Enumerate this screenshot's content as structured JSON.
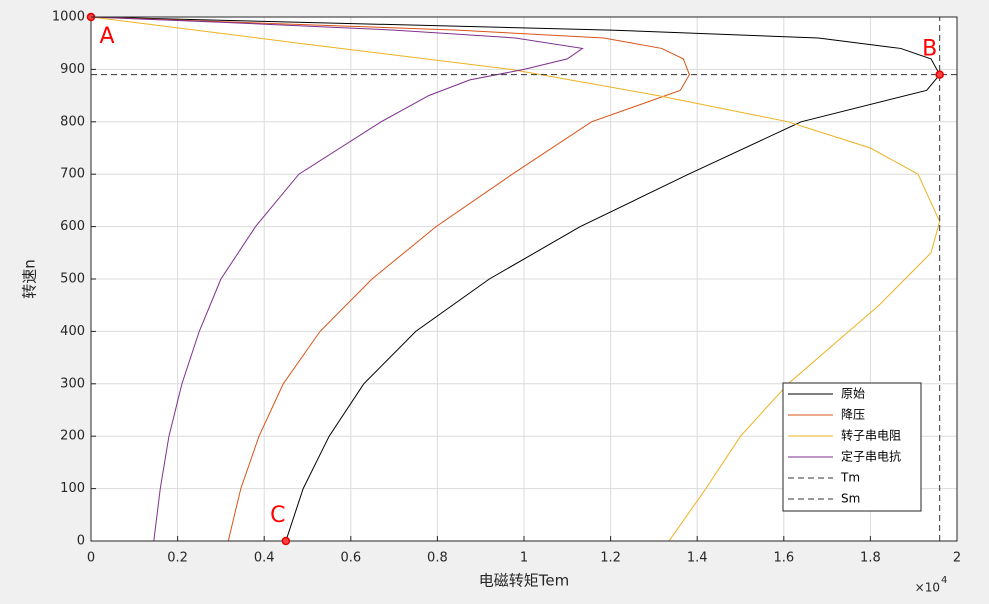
{
  "chart_data": {
    "type": "line",
    "xlabel": "电磁转矩Tem",
    "ylabel": "转速n",
    "x_scale_label": {
      "base": "×10",
      "exponent": "4"
    },
    "xlim": [
      0,
      20000
    ],
    "ylim": [
      0,
      1000
    ],
    "xticks": [
      0,
      {
        "value": 2000,
        "label": "0.2"
      },
      {
        "value": 4000,
        "label": "0.4"
      },
      {
        "value": 6000,
        "label": "0.6"
      },
      {
        "value": 8000,
        "label": "0.8"
      },
      {
        "value": 10000,
        "label": "1"
      },
      {
        "value": 12000,
        "label": "1.2"
      },
      {
        "value": 14000,
        "label": "1.4"
      },
      {
        "value": 16000,
        "label": "1.6"
      },
      {
        "value": 18000,
        "label": "1.8"
      },
      {
        "value": 20000,
        "label": "2"
      }
    ],
    "yticks": [
      0,
      100,
      200,
      300,
      400,
      500,
      600,
      700,
      800,
      900,
      1000
    ],
    "grid": true,
    "legend_position": "lower right",
    "series": [
      {
        "name": "原始",
        "color": "#000000",
        "style": "solid",
        "x": [
          0,
          12000,
          16800,
          18700,
          19400,
          19600,
          19300,
          16400,
          13800,
          11300,
          9200,
          7500,
          6300,
          5500,
          4900,
          4500
        ],
        "y": [
          1000,
          975,
          960,
          940,
          920,
          890,
          860,
          800,
          700,
          600,
          500,
          400,
          300,
          200,
          100,
          0
        ]
      },
      {
        "name": "降压",
        "color": "#d95319",
        "style": "solid",
        "x": [
          0,
          8460,
          11840,
          13180,
          13680,
          13820,
          13610,
          11560,
          9730,
          7970,
          6490,
          5290,
          4440,
          3880,
          3460,
          3170
        ],
        "y": [
          1000,
          975,
          960,
          940,
          920,
          890,
          860,
          800,
          700,
          600,
          500,
          400,
          300,
          200,
          100,
          0
        ]
      },
      {
        "name": "转子串电阻",
        "color": "#edb120",
        "style": "solid",
        "x": [
          0,
          4800,
          9700,
          13100,
          16100,
          18000,
          19100,
          19600,
          19400,
          18800,
          18200,
          17500,
          16100,
          15000,
          14200,
          13350
        ],
        "y": [
          1000,
          950,
          900,
          850,
          800,
          750,
          700,
          610,
          550,
          500,
          450,
          400,
          300,
          200,
          100,
          0
        ]
      },
      {
        "name": "定子串电抗",
        "color": "#7e2f8e",
        "style": "solid",
        "x": [
          0,
          3000,
          7000,
          9800,
          11350,
          11000,
          10000,
          8750,
          7800,
          6700,
          4800,
          3800,
          3000,
          2500,
          2100,
          1800,
          1600,
          1450
        ],
        "y": [
          1000,
          990,
          975,
          960,
          940,
          920,
          900,
          880,
          850,
          800,
          700,
          600,
          500,
          400,
          300,
          200,
          100,
          0
        ]
      },
      {
        "name": "Tm",
        "color": "#333333",
        "style": "dashed",
        "x": [
          19600,
          19600
        ],
        "y": [
          0,
          1000
        ]
      },
      {
        "name": "Sm",
        "color": "#333333",
        "style": "dashed",
        "x": [
          0,
          20000
        ],
        "y": [
          890,
          890
        ]
      }
    ],
    "annotations": [
      {
        "label": "A",
        "x": 0,
        "y": 1000
      },
      {
        "label": "B",
        "x": 19600,
        "y": 890
      },
      {
        "label": "C",
        "x": 4500,
        "y": 0
      }
    ]
  }
}
